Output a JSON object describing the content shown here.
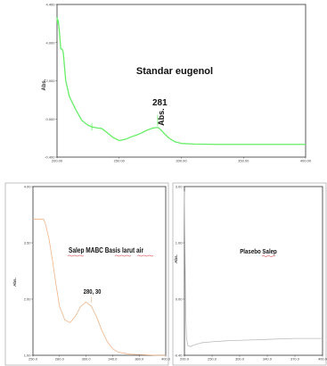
{
  "chart_data": [
    {
      "type": "line",
      "title": "Standar eugenol",
      "ylabel": "Abs.",
      "xlim": [
        200,
        400
      ],
      "ylim": [
        -0.4,
        4.4
      ],
      "xticks": [
        "200.00",
        "250.00",
        "300.00",
        "350.00",
        "400.00"
      ],
      "yticks": [
        "4.400",
        "4.000",
        "2.000",
        "0.000",
        "-0.400"
      ],
      "color": "#66ee66",
      "series": [
        {
          "x": [
            200,
            200.5,
            201,
            202,
            203,
            204,
            205,
            207,
            210,
            215,
            220,
            225,
            228,
            232,
            236,
            240,
            245,
            250,
            255,
            260,
            265,
            268,
            270,
            272,
            274,
            276,
            278,
            280,
            281,
            282,
            284,
            286,
            290,
            295,
            300,
            310,
            330,
            360,
            400
          ],
          "values": [
            4.0,
            3.8,
            3.9,
            3.5,
            3.0,
            3.0,
            2.9,
            2.0,
            1.5,
            1.1,
            0.75,
            0.6,
            0.55,
            0.52,
            0.5,
            0.38,
            0.22,
            0.12,
            0.16,
            0.24,
            0.31,
            0.36,
            0.4,
            0.44,
            0.47,
            0.5,
            0.52,
            0.53,
            0.53,
            0.51,
            0.44,
            0.35,
            0.2,
            0.08,
            0.03,
            0.01,
            0.0,
            0.0,
            0.0
          ]
        }
      ],
      "annotations": [
        {
          "text": "281",
          "x": 281,
          "y": 0.53
        },
        {
          "text": "Abs.",
          "x": 281,
          "y": 0.53
        }
      ]
    },
    {
      "type": "line",
      "title": "Salep MABC Basis larut air",
      "ylabel": "Abs.",
      "xlim": [
        250,
        400
      ],
      "ylim": [
        1.0,
        4.1
      ],
      "xticks": [
        "250.0",
        "280.0",
        "300.0",
        "340.0",
        "380.0",
        "400.0"
      ],
      "yticks": [
        "4.00",
        "3.50",
        "2.00",
        "1.00"
      ],
      "color": "#f0b488",
      "series": [
        {
          "x": [
            250,
            262,
            264,
            268,
            272,
            276,
            280,
            286,
            292,
            298,
            304,
            310,
            316,
            322,
            328,
            334,
            340,
            346,
            352,
            360,
            375,
            390,
            400
          ],
          "values": [
            3.5,
            3.5,
            3.42,
            3.15,
            2.75,
            2.3,
            1.9,
            1.65,
            1.6,
            1.72,
            1.9,
            1.98,
            1.9,
            1.7,
            1.45,
            1.25,
            1.12,
            1.06,
            1.04,
            1.02,
            1.01,
            1.0,
            1.0
          ]
        }
      ],
      "annotations": [
        {
          "text": "280, 30",
          "x": 316,
          "y": 1.98
        }
      ]
    },
    {
      "type": "line",
      "title": "Plasebo Salep",
      "ylabel": "Abs.",
      "xlim": [
        200,
        400
      ],
      "ylim": [
        -0.4,
        3.1
      ],
      "xticks": [
        "200.0",
        "250.0",
        "300.0",
        "340.0",
        "370.0",
        "400.0"
      ],
      "yticks": [
        "3.00",
        "1.00",
        "0.00",
        "-0.40"
      ],
      "color": "#bbbbbb",
      "series": [
        {
          "x": [
            200,
            201,
            202,
            203,
            205,
            208,
            215,
            225,
            240,
            260,
            280,
            300,
            320,
            340,
            360,
            380,
            400
          ],
          "values": [
            3.0,
            1.5,
            0.4,
            -0.05,
            -0.2,
            -0.22,
            -0.18,
            -0.14,
            -0.12,
            -0.1,
            -0.09,
            -0.08,
            -0.07,
            -0.06,
            -0.05,
            -0.05,
            -0.05
          ]
        }
      ],
      "annotations": []
    }
  ]
}
